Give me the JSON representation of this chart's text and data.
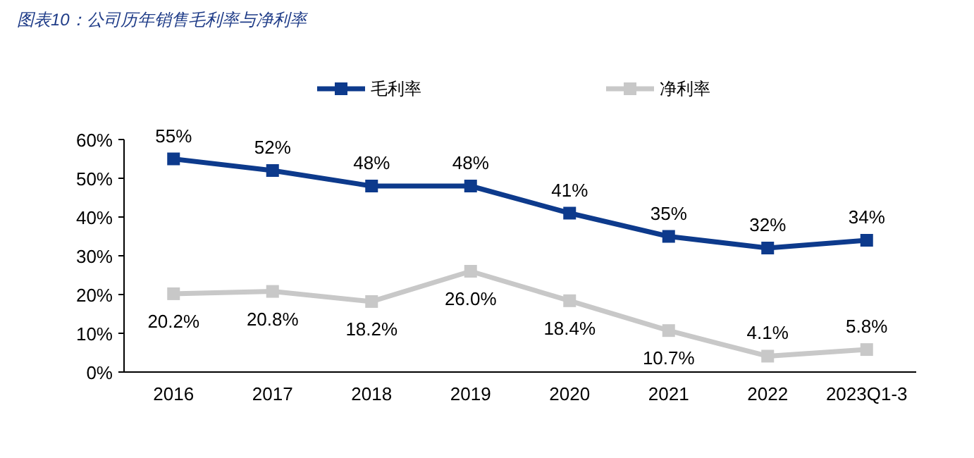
{
  "chart_data": {
    "type": "line",
    "title": "图表10：公司历年销售毛利率与净利率",
    "categories": [
      "2016",
      "2017",
      "2018",
      "2019",
      "2020",
      "2021",
      "2022",
      "2023Q1-3"
    ],
    "series": [
      {
        "name": "毛利率",
        "color": "#0d3a8c",
        "values": [
          55,
          52,
          48,
          48,
          41,
          35,
          32,
          34
        ],
        "value_labels": [
          "55%",
          "52%",
          "48%",
          "48%",
          "41%",
          "35%",
          "32%",
          "34%"
        ]
      },
      {
        "name": "净利率",
        "color": "#c8c8c8",
        "values": [
          20.2,
          20.8,
          18.2,
          26.0,
          18.4,
          10.7,
          4.1,
          5.8
        ],
        "value_labels": [
          "20.2%",
          "20.8%",
          "18.2%",
          "26.0%",
          "18.4%",
          "10.7%",
          "4.1%",
          "5.8%"
        ]
      }
    ],
    "ylim": [
      0,
      60
    ],
    "yticks": [
      {
        "value": 0,
        "label": "0%"
      },
      {
        "value": 10,
        "label": "10%"
      },
      {
        "value": 20,
        "label": "20%"
      },
      {
        "value": 30,
        "label": "30%"
      },
      {
        "value": 40,
        "label": "40%"
      },
      {
        "value": 50,
        "label": "50%"
      },
      {
        "value": 60,
        "label": "60%"
      }
    ],
    "legend": "top",
    "marker": "square",
    "line_style": "solid",
    "grid": false
  }
}
